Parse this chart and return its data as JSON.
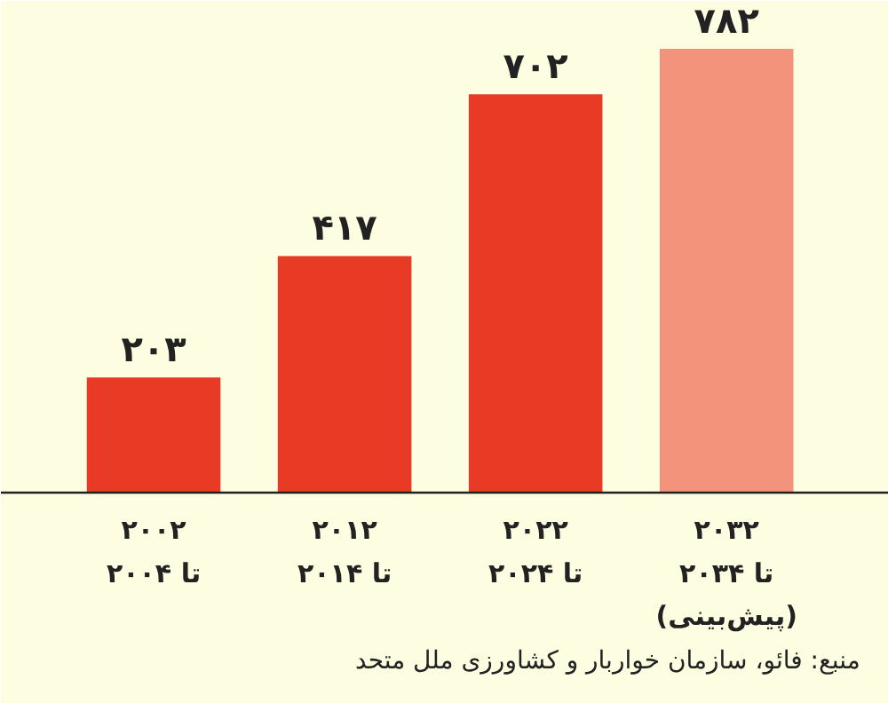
{
  "chart_data": {
    "type": "bar",
    "categories": [
      "۲۰۰۲\nتا ۲۰۰۴",
      "۲۰۱۲\nتا ۲۰۱۴",
      "۲۰۲۲\nتا ۲۰۲۴",
      "۲۰۳۲\nتا ۲۰۳۴\n(پیش‌بینی)"
    ],
    "values": [
      203,
      417,
      702,
      782
    ],
    "colors": [
      "#e83a25",
      "#e83a25",
      "#e83a25",
      "#f4937c"
    ],
    "value_labels": [
      "۲۰۳",
      "۴۱۷",
      "۷۰۲",
      "۷۸۲"
    ],
    "annotations": [
      "منبع: فائو، سازمان خواربار و کشاورزی ملل متحد"
    ]
  }
}
